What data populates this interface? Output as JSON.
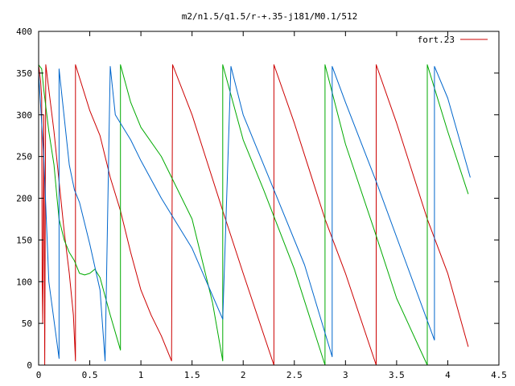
{
  "chart_data": {
    "type": "line",
    "title": "m2/n1.5/q1.5/r-+.35-j181/M0.1/512",
    "xlabel": "",
    "ylabel": "",
    "xlim": [
      0,
      4.5
    ],
    "ylim": [
      0,
      400
    ],
    "xticks": [
      0,
      0.5,
      1,
      1.5,
      2,
      2.5,
      3,
      3.5,
      4,
      4.5
    ],
    "xtick_labels": [
      "0",
      "0.5",
      "1",
      "1.5",
      "2",
      "2.5",
      "3",
      "3.5",
      "4",
      "4.5"
    ],
    "yticks": [
      0,
      50,
      100,
      150,
      200,
      250,
      300,
      350,
      400
    ],
    "ytick_labels": [
      "0",
      "50",
      "100",
      "150",
      "200",
      "250",
      "300",
      "350",
      "400"
    ],
    "grid": false,
    "legend": {
      "position": "top-right",
      "entries": [
        "fort.23"
      ]
    },
    "series": [
      {
        "name": "fort.23",
        "color": "#cc0000",
        "points": [
          [
            0.0,
            360
          ],
          [
            0.02,
            340
          ],
          [
            0.03,
            320
          ],
          [
            0.035,
            100
          ],
          [
            0.04,
            50
          ],
          [
            0.05,
            300
          ],
          [
            0.06,
            0
          ],
          [
            0.07,
            360
          ],
          [
            0.1,
            330
          ],
          [
            0.15,
            280
          ],
          [
            0.2,
            220
          ],
          [
            0.25,
            160
          ],
          [
            0.3,
            110
          ],
          [
            0.34,
            60
          ],
          [
            0.36,
            5
          ],
          [
            0.36,
            360
          ],
          [
            0.5,
            305
          ],
          [
            0.6,
            275
          ],
          [
            0.7,
            225
          ],
          [
            0.8,
            185
          ],
          [
            0.9,
            135
          ],
          [
            1.0,
            90
          ],
          [
            1.1,
            60
          ],
          [
            1.2,
            35
          ],
          [
            1.3,
            5
          ],
          [
            1.31,
            360
          ],
          [
            1.5,
            300
          ],
          [
            1.8,
            185
          ],
          [
            2.0,
            110
          ],
          [
            2.3,
            0
          ],
          [
            2.3,
            360
          ],
          [
            2.5,
            290
          ],
          [
            2.8,
            175
          ],
          [
            3.0,
            110
          ],
          [
            3.3,
            0
          ],
          [
            3.3,
            360
          ],
          [
            3.5,
            290
          ],
          [
            3.8,
            175
          ],
          [
            4.0,
            110
          ],
          [
            4.2,
            22
          ]
        ]
      },
      {
        "name": "",
        "color": "#00aa00",
        "points": [
          [
            0.0,
            360
          ],
          [
            0.03,
            355
          ],
          [
            0.05,
            330
          ],
          [
            0.1,
            280
          ],
          [
            0.15,
            240
          ],
          [
            0.18,
            200
          ],
          [
            0.2,
            175
          ],
          [
            0.25,
            150
          ],
          [
            0.3,
            135
          ],
          [
            0.35,
            125
          ],
          [
            0.4,
            110
          ],
          [
            0.45,
            108
          ],
          [
            0.5,
            110
          ],
          [
            0.55,
            115
          ],
          [
            0.6,
            105
          ],
          [
            0.7,
            60
          ],
          [
            0.8,
            18
          ],
          [
            0.8,
            360
          ],
          [
            0.9,
            315
          ],
          [
            1.0,
            285
          ],
          [
            1.2,
            250
          ],
          [
            1.5,
            175
          ],
          [
            1.7,
            75
          ],
          [
            1.8,
            5
          ],
          [
            1.8,
            360
          ],
          [
            2.0,
            270
          ],
          [
            2.2,
            210
          ],
          [
            2.5,
            115
          ],
          [
            2.8,
            0
          ],
          [
            2.8,
            360
          ],
          [
            3.0,
            265
          ],
          [
            3.3,
            155
          ],
          [
            3.5,
            80
          ],
          [
            3.8,
            0
          ],
          [
            3.8,
            360
          ],
          [
            4.0,
            280
          ],
          [
            4.2,
            205
          ]
        ]
      },
      {
        "name": "",
        "color": "#0066cc",
        "points": [
          [
            0.0,
            350
          ],
          [
            0.05,
            250
          ],
          [
            0.1,
            100
          ],
          [
            0.2,
            8
          ],
          [
            0.2,
            355
          ],
          [
            0.3,
            240
          ],
          [
            0.35,
            210
          ],
          [
            0.4,
            195
          ],
          [
            0.5,
            145
          ],
          [
            0.6,
            90
          ],
          [
            0.65,
            5
          ],
          [
            0.7,
            358
          ],
          [
            0.75,
            300
          ],
          [
            0.9,
            270
          ],
          [
            1.0,
            245
          ],
          [
            1.2,
            200
          ],
          [
            1.5,
            140
          ],
          [
            1.8,
            55
          ],
          [
            1.88,
            358
          ],
          [
            2.0,
            300
          ],
          [
            2.3,
            210
          ],
          [
            2.6,
            120
          ],
          [
            2.87,
            10
          ],
          [
            2.87,
            358
          ],
          [
            3.0,
            315
          ],
          [
            3.3,
            220
          ],
          [
            3.6,
            120
          ],
          [
            3.87,
            30
          ],
          [
            3.87,
            358
          ],
          [
            4.0,
            320
          ],
          [
            4.22,
            225
          ]
        ]
      }
    ]
  }
}
